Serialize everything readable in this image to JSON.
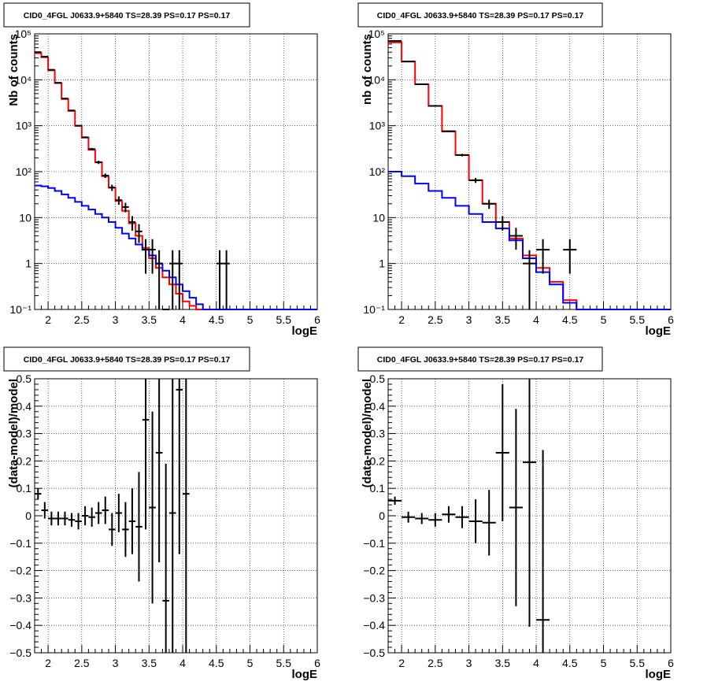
{
  "chart_data": [
    {
      "type": "histogram",
      "title": "CID0_4FGL J0633.9+5840 TS=28.39 PS=0.17 PS=0.17",
      "xlabel": "logE",
      "ylabel": "Nb of counts",
      "yscale": "log",
      "xlim": [
        1.8,
        6.0
      ],
      "ylim": [
        0.1,
        100000
      ],
      "grid": true,
      "xticks": [
        "2",
        "2.5",
        "3",
        "3.5",
        "4",
        "4.5",
        "5",
        "5.5",
        "6"
      ],
      "yticks": [
        "10⁻¹",
        "1",
        "10",
        "10²",
        "10³",
        "10⁴",
        "10⁵"
      ],
      "bin_width": 0.1,
      "series": [
        {
          "color": "#ff0000",
          "edges_start": 1.8,
          "values": [
            38000,
            31000,
            16000,
            8500,
            3800,
            2100,
            1000,
            550,
            300,
            160,
            80,
            45,
            23,
            14,
            7.5,
            4,
            2.2,
            1.3,
            0.8,
            0.5,
            0.35,
            0.22,
            0.15,
            0.12,
            0.1,
            0.1,
            0.1,
            0.1,
            0.1,
            0.1,
            0.1,
            0.1,
            0.1,
            0.1,
            0.1,
            0.1,
            0.1,
            0.1,
            0.1,
            0.1,
            0.1,
            0.1
          ]
        },
        {
          "color": "#0000ff",
          "edges_start": 1.8,
          "values": [
            50,
            48,
            44,
            38,
            32,
            27,
            22,
            18,
            15,
            12,
            10,
            8,
            6,
            4.5,
            3.5,
            2.6,
            2,
            1.5,
            1,
            0.7,
            0.5,
            0.35,
            0.25,
            0.18,
            0.13,
            0.1,
            0.1,
            0.1,
            0.1,
            0.1,
            0.1,
            0.1,
            0.1,
            0.1,
            0.1,
            0.1,
            0.1,
            0.1,
            0.1,
            0.1,
            0.1,
            0.1
          ]
        },
        {
          "color": "#000000",
          "kind": "data points",
          "points": [
            {
              "x": 1.85,
              "y": 40000,
              "err": 200
            },
            {
              "x": 1.95,
              "y": 32000,
              "err": 180
            },
            {
              "x": 2.05,
              "y": 16500,
              "err": 130
            },
            {
              "x": 2.15,
              "y": 8600,
              "err": 90
            },
            {
              "x": 2.25,
              "y": 3900,
              "err": 60
            },
            {
              "x": 2.35,
              "y": 2150,
              "err": 46
            },
            {
              "x": 2.45,
              "y": 1000,
              "err": 32
            },
            {
              "x": 2.55,
              "y": 560,
              "err": 24
            },
            {
              "x": 2.65,
              "y": 310,
              "err": 18
            },
            {
              "x": 2.75,
              "y": 160,
              "err": 13
            },
            {
              "x": 2.85,
              "y": 82,
              "err": 9
            },
            {
              "x": 2.95,
              "y": 45,
              "err": 7
            },
            {
              "x": 3.05,
              "y": 24,
              "err": 5
            },
            {
              "x": 3.15,
              "y": 17,
              "err": 4
            },
            {
              "x": 3.25,
              "y": 8,
              "err": 2.8
            },
            {
              "x": 3.35,
              "y": 5,
              "err": 2.2
            },
            {
              "x": 3.45,
              "y": 2,
              "err": 1.4
            },
            {
              "x": 3.55,
              "y": 2,
              "err": 1.4
            },
            {
              "x": 3.65,
              "y": 1,
              "err": 0.95
            },
            {
              "x": 3.75,
              "y": 0.1,
              "err": 0
            },
            {
              "x": 3.85,
              "y": 1,
              "err": 0.95
            },
            {
              "x": 3.95,
              "y": 1,
              "err": 0.95
            },
            {
              "x": 4.55,
              "y": 1,
              "err": 0.95
            },
            {
              "x": 4.65,
              "y": 1,
              "err": 0.95
            }
          ]
        }
      ]
    },
    {
      "type": "histogram",
      "title": "CID0_4FGL J0633.9+5840 TS=28.39 PS=0.17 PS=0.17",
      "xlabel": "logE",
      "ylabel": "nb of counts",
      "yscale": "log",
      "xlim": [
        1.8,
        6.0
      ],
      "ylim": [
        0.1,
        100000
      ],
      "grid": true,
      "xticks": [
        "2",
        "2.5",
        "3",
        "3.5",
        "4",
        "4.5",
        "5",
        "5.5",
        "6"
      ],
      "yticks": [
        "10⁻¹",
        "1",
        "10",
        "10²",
        "10³",
        "10⁴",
        "10⁵"
      ],
      "bin_width": 0.2,
      "series": [
        {
          "color": "#ff0000",
          "edges_start": 1.8,
          "values": [
            65000,
            25000,
            8000,
            2700,
            750,
            230,
            65,
            20,
            8,
            3.5,
            1.5,
            0.8,
            0.4,
            0.16,
            0.1,
            0.1,
            0.1,
            0.1,
            0.1,
            0.1,
            0.1
          ]
        },
        {
          "color": "#0000ff",
          "edges_start": 1.8,
          "values": [
            100,
            80,
            55,
            38,
            27,
            18,
            12,
            8,
            5.8,
            3.2,
            1.3,
            0.65,
            0.35,
            0.14,
            0.1,
            0.1,
            0.1,
            0.1,
            0.1,
            0.1,
            0.1
          ]
        },
        {
          "color": "#000000",
          "kind": "data points",
          "points": [
            {
              "x": 1.9,
              "y": 70000,
              "err": 260
            },
            {
              "x": 2.1,
              "y": 25000,
              "err": 160
            },
            {
              "x": 2.3,
              "y": 8000,
              "err": 90
            },
            {
              "x": 2.5,
              "y": 2700,
              "err": 52
            },
            {
              "x": 2.7,
              "y": 760,
              "err": 28
            },
            {
              "x": 2.9,
              "y": 230,
              "err": 15
            },
            {
              "x": 3.1,
              "y": 65,
              "err": 8
            },
            {
              "x": 3.3,
              "y": 20,
              "err": 4.5
            },
            {
              "x": 3.5,
              "y": 8,
              "err": 2.8
            },
            {
              "x": 3.7,
              "y": 4,
              "err": 2
            },
            {
              "x": 3.9,
              "y": 1,
              "err": 0.95
            },
            {
              "x": 4.1,
              "y": 2,
              "err": 1.4
            },
            {
              "x": 4.5,
              "y": 2,
              "err": 1.4
            }
          ]
        }
      ]
    },
    {
      "type": "scatter",
      "title": "CID0_4FGL J0633.9+5840 TS=28.39 PS=0.17 PS=0.17",
      "xlabel": "logE",
      "ylabel": "(data-model)/model",
      "xlim": [
        1.8,
        6.0
      ],
      "ylim": [
        -0.5,
        0.5
      ],
      "grid": true,
      "xticks": [
        "2",
        "2.5",
        "3",
        "3.5",
        "4",
        "4.5",
        "5",
        "5.5",
        "6"
      ],
      "yticks": [
        "−0.5",
        "−0.4",
        "−0.3",
        "−0.2",
        "−0.1",
        "0",
        "0.1",
        "0.2",
        "0.3",
        "0.4",
        "0.5"
      ],
      "series": [
        {
          "color": "#000000",
          "xerr": 0.05,
          "points": [
            {
              "x": 1.85,
              "y": 0.08,
              "err": 0.02
            },
            {
              "x": 1.95,
              "y": 0.02,
              "err": 0.03
            },
            {
              "x": 2.05,
              "y": -0.01,
              "err": 0.025
            },
            {
              "x": 2.15,
              "y": -0.01,
              "err": 0.025
            },
            {
              "x": 2.25,
              "y": -0.01,
              "err": 0.025
            },
            {
              "x": 2.35,
              "y": -0.015,
              "err": 0.025
            },
            {
              "x": 2.45,
              "y": -0.02,
              "err": 0.03
            },
            {
              "x": 2.55,
              "y": 0.0,
              "err": 0.035
            },
            {
              "x": 2.65,
              "y": -0.005,
              "err": 0.035
            },
            {
              "x": 2.75,
              "y": 0.01,
              "err": 0.04
            },
            {
              "x": 2.85,
              "y": 0.02,
              "err": 0.05
            },
            {
              "x": 2.95,
              "y": -0.05,
              "err": 0.06
            },
            {
              "x": 3.05,
              "y": 0.01,
              "err": 0.07
            },
            {
              "x": 3.15,
              "y": -0.05,
              "err": 0.1
            },
            {
              "x": 3.25,
              "y": -0.02,
              "err": 0.12
            },
            {
              "x": 3.35,
              "y": -0.04,
              "err": 0.2
            },
            {
              "x": 3.45,
              "y": 0.35,
              "err": 0.4
            },
            {
              "x": 3.55,
              "y": 0.03,
              "err": 0.35
            },
            {
              "x": 3.65,
              "y": 0.23,
              "err": 0.4
            },
            {
              "x": 3.75,
              "y": -0.31,
              "err": 0.5
            },
            {
              "x": 3.85,
              "y": 0.01,
              "err": 0.55
            },
            {
              "x": 3.95,
              "y": 0.46,
              "err": 0.6
            },
            {
              "x": 4.05,
              "y": 0.08,
              "err": 0.65
            }
          ]
        }
      ]
    },
    {
      "type": "scatter",
      "title": "CID0_4FGL J0633.9+5840 TS=28.39 PS=0.17 PS=0.17",
      "xlabel": "logE",
      "ylabel": "(data-model)/model",
      "xlim": [
        1.8,
        6.0
      ],
      "ylim": [
        -0.5,
        0.5
      ],
      "grid": true,
      "xticks": [
        "2",
        "2.5",
        "3",
        "3.5",
        "4",
        "4.5",
        "5",
        "5.5",
        "6"
      ],
      "yticks": [
        "−0.5",
        "−0.4",
        "−0.3",
        "−0.2",
        "−0.1",
        "0",
        "0.1",
        "0.2",
        "0.3",
        "0.4",
        "0.5"
      ],
      "series": [
        {
          "color": "#000000",
          "xerr": 0.1,
          "points": [
            {
              "x": 1.9,
              "y": 0.055,
              "err": 0.015
            },
            {
              "x": 2.1,
              "y": -0.005,
              "err": 0.02
            },
            {
              "x": 2.3,
              "y": -0.01,
              "err": 0.02
            },
            {
              "x": 2.5,
              "y": -0.015,
              "err": 0.025
            },
            {
              "x": 2.7,
              "y": 0.005,
              "err": 0.03
            },
            {
              "x": 2.9,
              "y": -0.005,
              "err": 0.04
            },
            {
              "x": 3.1,
              "y": -0.02,
              "err": 0.08
            },
            {
              "x": 3.3,
              "y": -0.025,
              "err": 0.12
            },
            {
              "x": 3.5,
              "y": 0.23,
              "err": 0.25
            },
            {
              "x": 3.7,
              "y": 0.03,
              "err": 0.36
            },
            {
              "x": 3.9,
              "y": 0.195,
              "err": 0.6
            },
            {
              "x": 4.1,
              "y": -0.38,
              "err": 0.62
            }
          ]
        }
      ]
    }
  ]
}
